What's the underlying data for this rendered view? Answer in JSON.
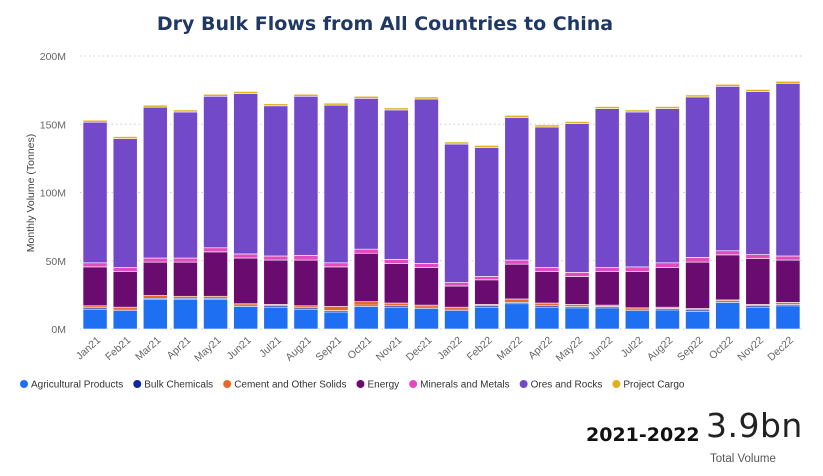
{
  "chart_data": {
    "type": "bar",
    "stacked": true,
    "title": "Dry Bulk Flows from All Countries to China",
    "ylabel": "Monthly Volume (Tonnes)",
    "xlabel": "",
    "ylim": [
      0,
      200
    ],
    "yticks": [
      "0M",
      "50M",
      "100M",
      "150M",
      "200M"
    ],
    "grid": true,
    "legend_position": "bottom",
    "categories": [
      "Jan21",
      "Feb21",
      "Mar21",
      "Apr21",
      "May21",
      "Jun21",
      "Jul21",
      "Aug21",
      "Sep21",
      "Oct21",
      "Nov21",
      "Dec21",
      "Jan22",
      "Feb22",
      "Mar22",
      "Apr22",
      "May22",
      "Jun22",
      "Jul22",
      "Aug22",
      "Sep22",
      "Oct22",
      "Nov22",
      "Dec22"
    ],
    "series": [
      {
        "name": "Agricultural Products",
        "color": "#1f6ff2",
        "values": [
          14.5,
          13.5,
          21.5,
          21.5,
          21.5,
          16.5,
          16.0,
          14.5,
          12.5,
          16.5,
          16.0,
          15.0,
          13.5,
          16.0,
          18.5,
          16.0,
          15.5,
          15.5,
          13.5,
          14.0,
          13.0,
          19.5,
          16.0,
          17.0
        ]
      },
      {
        "name": "Bulk Chemicals",
        "color": "#13269a",
        "values": [
          1.0,
          1.0,
          1.0,
          1.0,
          1.0,
          1.0,
          1.0,
          1.0,
          1.0,
          1.0,
          1.0,
          1.0,
          1.0,
          1.0,
          1.0,
          1.0,
          1.0,
          1.0,
          1.0,
          1.0,
          1.0,
          1.0,
          1.0,
          1.0
        ]
      },
      {
        "name": "Cement and Other Solids",
        "color": "#e8672a",
        "values": [
          1.5,
          1.5,
          2.0,
          1.5,
          1.5,
          1.0,
          1.0,
          1.5,
          3.0,
          2.5,
          2.0,
          1.5,
          1.5,
          1.0,
          2.5,
          2.0,
          1.5,
          1.0,
          1.0,
          1.0,
          1.0,
          0.8,
          1.0,
          1.5
        ]
      },
      {
        "name": "Energy",
        "color": "#6a0b6f",
        "values": [
          28.5,
          26.0,
          24.5,
          25.0,
          32.5,
          33.5,
          32.5,
          33.5,
          29.0,
          35.5,
          29.0,
          27.5,
          15.5,
          18.0,
          25.5,
          23.0,
          20.5,
          24.5,
          26.5,
          29.0,
          34.0,
          33.0,
          33.5,
          31.0
        ]
      },
      {
        "name": "Minerals and Metals",
        "color": "#e24bbd",
        "values": [
          3.0,
          3.0,
          3.0,
          3.0,
          3.0,
          3.0,
          3.0,
          3.5,
          3.0,
          3.0,
          3.0,
          3.0,
          2.5,
          2.5,
          3.0,
          3.0,
          3.0,
          3.0,
          3.5,
          3.5,
          3.5,
          3.0,
          3.0,
          3.0
        ]
      },
      {
        "name": "Ores and Rocks",
        "color": "#7249c8",
        "values": [
          103.0,
          94.5,
          110.5,
          107.0,
          111.0,
          117.5,
          110.0,
          116.5,
          115.5,
          110.5,
          109.5,
          120.5,
          101.5,
          94.5,
          104.5,
          103.0,
          109.0,
          116.5,
          113.5,
          113.0,
          117.5,
          120.5,
          119.5,
          126.5
        ]
      },
      {
        "name": "Project Cargo",
        "color": "#e0b11a",
        "values": [
          1.5,
          1.5,
          1.5,
          1.5,
          1.5,
          1.5,
          1.5,
          1.5,
          1.5,
          1.5,
          1.5,
          1.5,
          1.5,
          1.5,
          1.5,
          1.5,
          1.5,
          1.5,
          1.5,
          1.5,
          1.5,
          1.5,
          1.5,
          1.5
        ]
      }
    ]
  },
  "kpi": {
    "period": "2021-2022",
    "value": "3.9bn",
    "caption": "Total Volume"
  }
}
